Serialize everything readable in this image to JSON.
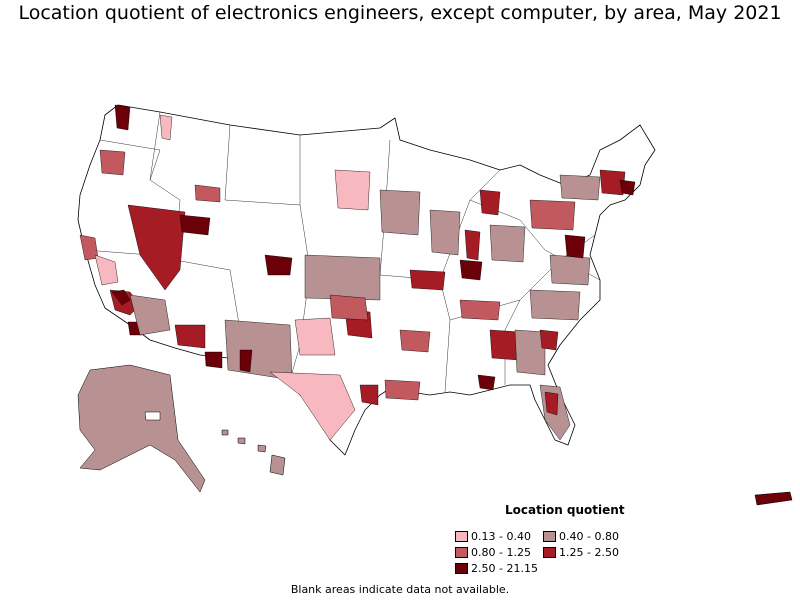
{
  "title": "Location quotient of electronics engineers, except computer, by area, May 2021",
  "legend": {
    "title": "Location quotient",
    "items": [
      {
        "label": "0.13 - 0.40",
        "color": "#f7b8bf"
      },
      {
        "label": "0.40 - 0.80",
        "color": "#b89192"
      },
      {
        "label": "0.80 - 1.25",
        "color": "#c2595f"
      },
      {
        "label": "1.25 - 2.50",
        "color": "#a51c25"
      },
      {
        "label": "2.50 - 21.15",
        "color": "#6b0008"
      }
    ]
  },
  "footnote": "Blank areas indicate data not available."
}
